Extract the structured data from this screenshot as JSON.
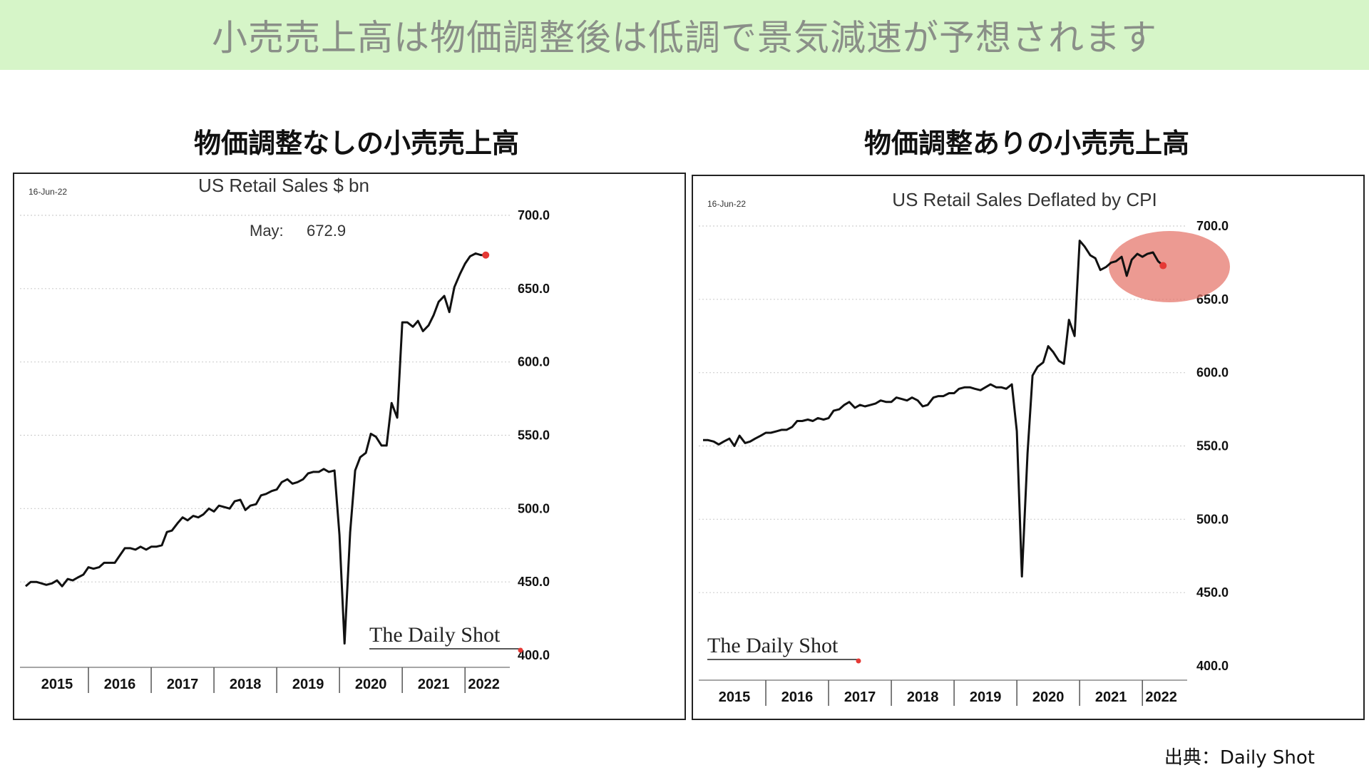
{
  "banner": {
    "title": "小売売上高は物価調整後は低調で景気減速が予想されます"
  },
  "panels": {
    "left_title": "物価調整なしの小売売上高",
    "right_title": "物価調整ありの小売売上高"
  },
  "source": "出典：Daily Shot",
  "colors": {
    "banner_bg": "#d6f5c8",
    "line": "#111111",
    "last_point": "#e53935",
    "highlight": "#e57368"
  },
  "chart_data": [
    {
      "type": "line",
      "title": "US Retail Sales $ bn",
      "date_label": "16-Jun-22",
      "annotation": {
        "label": "May:",
        "value": "672.9"
      },
      "watermark": "The Daily Shot",
      "ylim": [
        400,
        700
      ],
      "yticks": [
        "700.0",
        "650.0",
        "600.0",
        "550.0",
        "500.0",
        "450.0",
        "400.0"
      ],
      "ytick_values": [
        700,
        650,
        600,
        550,
        500,
        450,
        400
      ],
      "xticks": [
        "2015",
        "2016",
        "2017",
        "2018",
        "2019",
        "2020",
        "2021",
        "2022"
      ],
      "x_range": [
        2015.0,
        2022.6
      ],
      "grid": "horizontal dotted",
      "series": [
        {
          "x": [
            2015.0,
            2015.08,
            2015.17,
            2015.25,
            2015.33,
            2015.42,
            2015.5,
            2015.58,
            2015.67,
            2015.75,
            2015.83,
            2015.92,
            2016.0,
            2016.08,
            2016.17,
            2016.25,
            2016.33,
            2016.42,
            2016.5,
            2016.58,
            2016.67,
            2016.75,
            2016.83,
            2016.92,
            2017.0,
            2017.08,
            2017.17,
            2017.25,
            2017.33,
            2017.42,
            2017.5,
            2017.58,
            2017.67,
            2017.75,
            2017.83,
            2017.92,
            2018.0,
            2018.08,
            2018.17,
            2018.25,
            2018.33,
            2018.42,
            2018.5,
            2018.58,
            2018.67,
            2018.75,
            2018.83,
            2018.92,
            2019.0,
            2019.08,
            2019.17,
            2019.25,
            2019.33,
            2019.42,
            2019.5,
            2019.58,
            2019.67,
            2019.75,
            2019.83,
            2019.92,
            2020.0,
            2020.08,
            2020.17,
            2020.25,
            2020.33,
            2020.42,
            2020.5,
            2020.58,
            2020.67,
            2020.75,
            2020.83,
            2020.92,
            2021.0,
            2021.08,
            2021.17,
            2021.25,
            2021.33,
            2021.42,
            2021.5,
            2021.58,
            2021.67,
            2021.75,
            2021.83,
            2021.92,
            2022.0,
            2022.08,
            2022.17,
            2022.25,
            2022.33
          ],
          "y": [
            447,
            450,
            450,
            449,
            448,
            449,
            451,
            447,
            452,
            451,
            453,
            455,
            460,
            459,
            460,
            463,
            463,
            463,
            468,
            473,
            473,
            472,
            474,
            472,
            474,
            474,
            475,
            484,
            485,
            490,
            494,
            492,
            495,
            494,
            496,
            500,
            498,
            502,
            501,
            500,
            505,
            506,
            499,
            502,
            503,
            509,
            510,
            512,
            513,
            518,
            520,
            517,
            518,
            520,
            524,
            525,
            525,
            527,
            525,
            526,
            482,
            408,
            484,
            526,
            535,
            538,
            551,
            549,
            543,
            543,
            572,
            562,
            627,
            627,
            624,
            628,
            621,
            625,
            632,
            641,
            645,
            634,
            651,
            660,
            667,
            672,
            674,
            672.9,
            672.9
          ]
        }
      ]
    },
    {
      "type": "line",
      "title": "US Retail Sales Deflated by CPI",
      "date_label": "16-Jun-22",
      "watermark": "The Daily Shot",
      "ylim": [
        400,
        700
      ],
      "yticks": [
        "700.0",
        "650.0",
        "600.0",
        "550.0",
        "500.0",
        "450.0",
        "400.0"
      ],
      "ytick_values": [
        700,
        650,
        600,
        550,
        500,
        450,
        400
      ],
      "xticks": [
        "2015",
        "2016",
        "2017",
        "2018",
        "2019",
        "2020",
        "2021",
        "2022"
      ],
      "x_range": [
        2015.0,
        2022.6
      ],
      "grid": "horizontal dotted",
      "highlight": "red ellipse around 2021–2022 values",
      "series": [
        {
          "x": [
            2015.0,
            2015.08,
            2015.17,
            2015.25,
            2015.33,
            2015.42,
            2015.5,
            2015.58,
            2015.67,
            2015.75,
            2015.83,
            2015.92,
            2016.0,
            2016.08,
            2016.17,
            2016.25,
            2016.33,
            2016.42,
            2016.5,
            2016.58,
            2016.67,
            2016.75,
            2016.83,
            2016.92,
            2017.0,
            2017.08,
            2017.17,
            2017.25,
            2017.33,
            2017.42,
            2017.5,
            2017.58,
            2017.67,
            2017.75,
            2017.83,
            2017.92,
            2018.0,
            2018.08,
            2018.17,
            2018.25,
            2018.33,
            2018.42,
            2018.5,
            2018.58,
            2018.67,
            2018.75,
            2018.83,
            2018.92,
            2019.0,
            2019.08,
            2019.17,
            2019.25,
            2019.33,
            2019.42,
            2019.5,
            2019.58,
            2019.67,
            2019.75,
            2019.83,
            2019.92,
            2020.0,
            2020.08,
            2020.17,
            2020.25,
            2020.33,
            2020.42,
            2020.5,
            2020.58,
            2020.67,
            2020.75,
            2020.83,
            2020.92,
            2021.0,
            2021.08,
            2021.17,
            2021.25,
            2021.33,
            2021.42,
            2021.5,
            2021.58,
            2021.67,
            2021.75,
            2021.83,
            2021.92,
            2022.0,
            2022.08,
            2022.17,
            2022.25,
            2022.33
          ],
          "y": [
            554,
            554,
            553,
            551,
            553,
            555,
            550,
            557,
            552,
            553,
            555,
            557,
            559,
            559,
            560,
            561,
            561,
            563,
            567,
            567,
            568,
            567,
            569,
            568,
            569,
            574,
            575,
            578,
            580,
            576,
            578,
            577,
            578,
            579,
            581,
            580,
            580,
            583,
            582,
            581,
            583,
            581,
            577,
            578,
            583,
            584,
            584,
            586,
            586,
            589,
            590,
            590,
            589,
            588,
            590,
            592,
            590,
            590,
            589,
            592,
            560,
            461,
            545,
            598,
            604,
            607,
            618,
            614,
            608,
            606,
            636,
            625,
            690,
            686,
            680,
            678,
            670,
            672,
            675,
            676,
            679,
            666,
            677,
            681,
            679,
            681,
            682,
            676,
            673
          ]
        }
      ]
    }
  ]
}
